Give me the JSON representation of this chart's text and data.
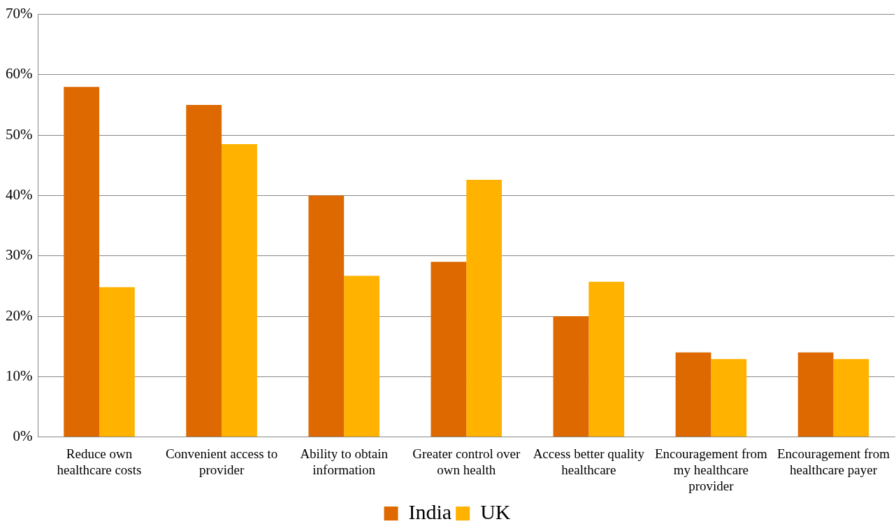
{
  "chart_data": {
    "type": "bar",
    "categories": [
      "Reduce own healthcare costs",
      "Convenient access to provider",
      "Ability to obtain information",
      "Greater control over own health",
      "Access better quality healthcare",
      "Encouragement from my healthcare provider",
      "Encouragement from healthcare payer"
    ],
    "series": [
      {
        "name": "India",
        "color": "#dd6900",
        "values": [
          58,
          55,
          40,
          29,
          20,
          14,
          14
        ]
      },
      {
        "name": "UK",
        "color": "#ffb300",
        "values": [
          24.8,
          48.5,
          26.7,
          42.6,
          25.7,
          12.9,
          12.9
        ]
      }
    ],
    "ylim": [
      0,
      70
    ],
    "yticks": [
      {
        "value": 0,
        "label": "0%"
      },
      {
        "value": 10,
        "label": "10%"
      },
      {
        "value": 20,
        "label": "20%"
      },
      {
        "value": 30,
        "label": "30%"
      },
      {
        "value": 40,
        "label": "40%"
      },
      {
        "value": 50,
        "label": "50%"
      },
      {
        "value": 60,
        "label": "60%"
      },
      {
        "value": 70,
        "label": "70%"
      }
    ],
    "grid": "y",
    "legend": "bottom"
  }
}
